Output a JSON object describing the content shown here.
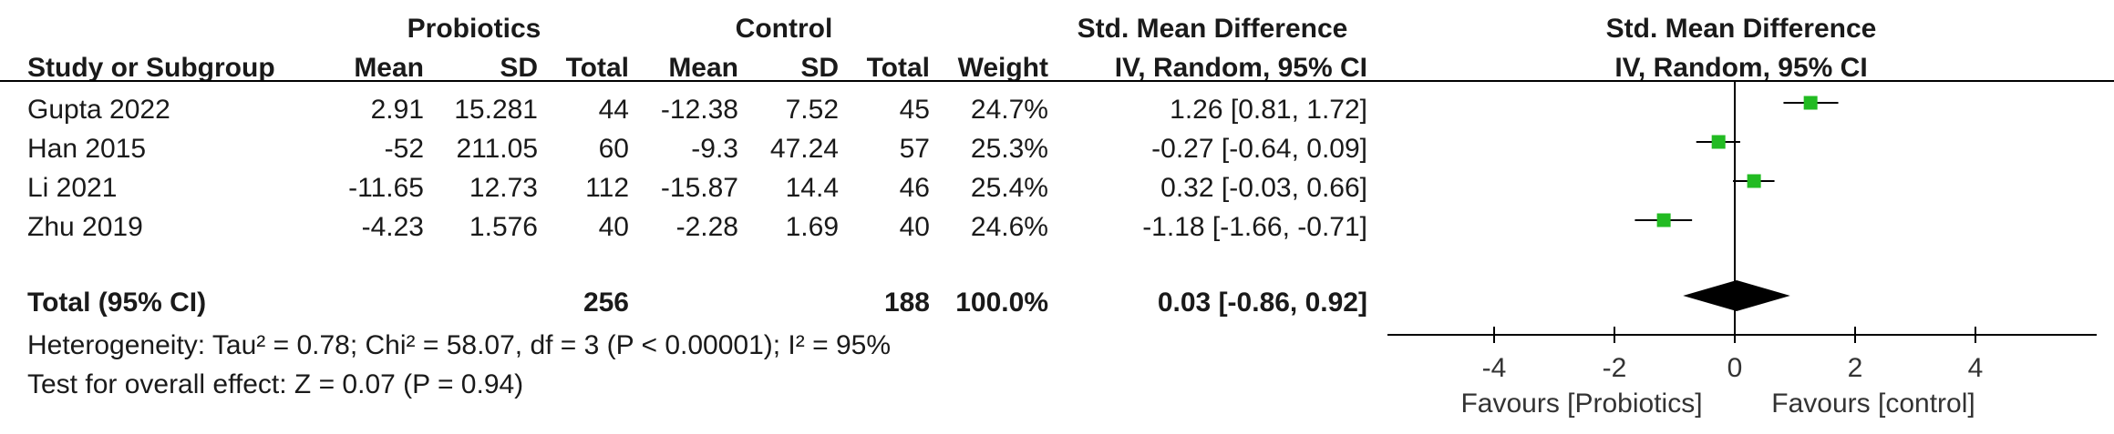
{
  "headers": {
    "group_probiotics": "Probiotics",
    "group_control": "Control",
    "group_effect": "Std. Mean Difference",
    "study": "Study or Subgroup",
    "mean": "Mean",
    "sd": "SD",
    "total": "Total",
    "weight": "Weight",
    "effect_method": "IV, Random, 95% CI",
    "plot_title": "Std. Mean Difference",
    "plot_method": "IV, Random, 95% CI"
  },
  "studies": [
    {
      "name": "Gupta 2022",
      "p_mean": "2.91",
      "p_sd": "15.281",
      "p_total": "44",
      "c_mean": "-12.38",
      "c_sd": "7.52",
      "c_total": "45",
      "weight": "24.7%",
      "ci_text": "1.26 [0.81, 1.72]"
    },
    {
      "name": "Han 2015",
      "p_mean": "-52",
      "p_sd": "211.05",
      "p_total": "60",
      "c_mean": "-9.3",
      "c_sd": "47.24",
      "c_total": "57",
      "weight": "25.3%",
      "ci_text": "-0.27 [-0.64, 0.09]"
    },
    {
      "name": "Li 2021",
      "p_mean": "-11.65",
      "p_sd": "12.73",
      "p_total": "112",
      "c_mean": "-15.87",
      "c_sd": "14.4",
      "c_total": "46",
      "weight": "25.4%",
      "ci_text": "0.32 [-0.03, 0.66]"
    },
    {
      "name": "Zhu 2019",
      "p_mean": "-4.23",
      "p_sd": "1.576",
      "p_total": "40",
      "c_mean": "-2.28",
      "c_sd": "1.69",
      "c_total": "40",
      "weight": "24.6%",
      "ci_text": "-1.18 [-1.66, -0.71]"
    }
  ],
  "total": {
    "label": "Total (95% CI)",
    "p_total": "256",
    "c_total": "188",
    "weight": "100.0%",
    "ci_text": "0.03 [-0.86, 0.92]"
  },
  "heterogeneity": "Heterogeneity: Tau² = 0.78; Chi² = 58.07, df = 3 (P < 0.00001); I² = 95%",
  "overall_effect": "Test for overall effect: Z = 0.07 (P = 0.94)",
  "axis": {
    "favours_left": "Favours [Probiotics]",
    "favours_right": "Favours [control]"
  },
  "colors": {
    "square": "#22bb22",
    "diamond": "#000000",
    "line": "#000000"
  },
  "chart_data": {
    "type": "forest",
    "xlim": [
      -6,
      6
    ],
    "ticks": [
      -4,
      -2,
      0,
      2,
      4
    ],
    "null_value": 0,
    "studies": [
      {
        "name": "Gupta 2022",
        "est": 1.26,
        "lo": 0.81,
        "hi": 1.72,
        "weight": 24.7
      },
      {
        "name": "Han 2015",
        "est": -0.27,
        "lo": -0.64,
        "hi": 0.09,
        "weight": 25.3
      },
      {
        "name": "Li 2021",
        "est": 0.32,
        "lo": -0.03,
        "hi": 0.66,
        "weight": 25.4
      },
      {
        "name": "Zhu 2019",
        "est": -1.18,
        "lo": -1.66,
        "hi": -0.71,
        "weight": 24.6
      }
    ],
    "pooled": {
      "est": 0.03,
      "lo": -0.86,
      "hi": 0.92
    }
  }
}
